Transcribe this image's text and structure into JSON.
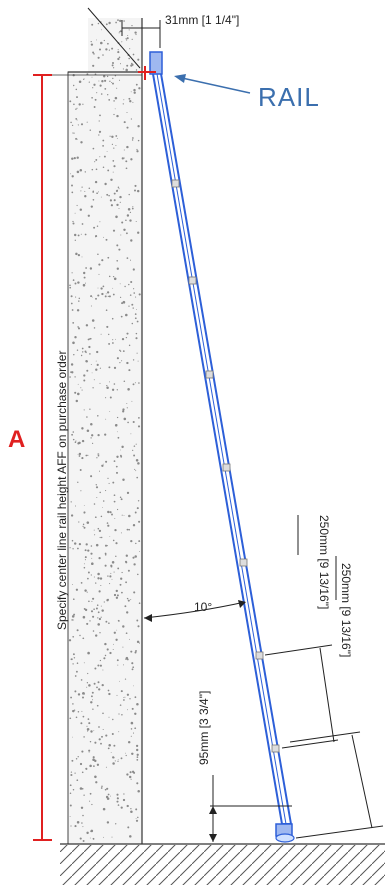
{
  "labels": {
    "top_offset": "31mm [1 1/4\"]",
    "rail": "RAIL",
    "height_marker": "A",
    "specify_note": "Specify center line rail height AFF on purchase order",
    "angle": "10°",
    "rung_spacing_1": "250mm [9 13/16\"]",
    "rung_spacing_2": "250mm [9 13/16\"]",
    "foot_height": "95mm [3 3/4\"]"
  },
  "colors": {
    "ladder": "#2d5fd8",
    "marker_red": "#e02020",
    "rail_label": "#3b6fae",
    "line": "#222222"
  }
}
